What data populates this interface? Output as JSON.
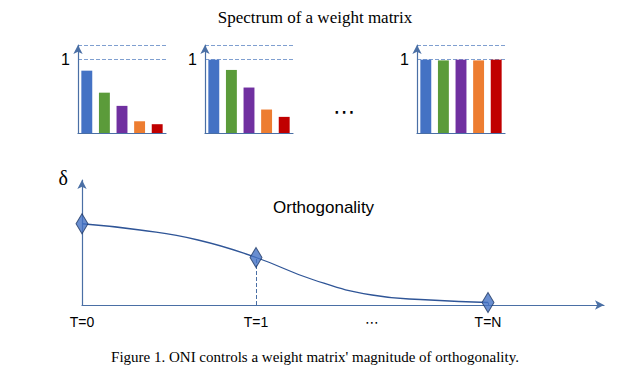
{
  "heading": "Spectrum of a weight matrix",
  "caption": "Figure 1. ONI controls a weight matrix' magnitude of orthogonality.",
  "chart_data": [
    {
      "type": "bar",
      "categories": [
        null,
        null,
        null,
        null,
        null
      ],
      "values": [
        0.85,
        0.55,
        0.37,
        0.16,
        0.12
      ],
      "colors": [
        "#4472c4",
        "#5b9b3a",
        "#7030a0",
        "#ed7d31",
        "#c00000"
      ],
      "ylim": [
        0,
        1.2
      ],
      "yticks": [
        1
      ],
      "grid": true,
      "tick_labels": "y"
    },
    {
      "type": "bar",
      "categories": [
        null,
        null,
        null,
        null,
        null
      ],
      "values": [
        1.0,
        0.86,
        0.62,
        0.32,
        0.22
      ],
      "colors": [
        "#4472c4",
        "#5b9b3a",
        "#7030a0",
        "#ed7d31",
        "#c00000"
      ],
      "ylim": [
        0,
        1.2
      ],
      "yticks": [
        1
      ],
      "grid": true,
      "tick_labels": "y",
      "annotation": "⋯"
    },
    {
      "type": "bar",
      "categories": [
        null,
        null,
        null,
        null,
        null
      ],
      "values": [
        1.0,
        0.99,
        1.0,
        0.99,
        1.0
      ],
      "colors": [
        "#4472c4",
        "#5b9b3a",
        "#7030a0",
        "#ed7d31",
        "#c00000"
      ],
      "ylim": [
        0,
        1.2
      ],
      "yticks": [
        1
      ],
      "grid": true,
      "tick_labels": "y"
    },
    {
      "type": "line",
      "title": "Orthogonality",
      "ylabel": "δ",
      "categories": [
        "T=0",
        null,
        null,
        "T=1",
        null,
        "⋯",
        null,
        "T=N",
        null,
        null
      ],
      "series": [
        {
          "type": "line",
          "color": "#2f5597",
          "values": [
            0.65,
            0.6,
            0.52,
            0.38,
            0.2,
            0.08,
            0.04,
            0.02,
            null,
            null
          ]
        },
        {
          "type": "scatter",
          "marker": "diamond",
          "color": "#4472c4",
          "values": [
            0.65,
            null,
            null,
            0.38,
            null,
            null,
            null,
            0.02,
            null,
            null
          ]
        }
      ],
      "ylim": [
        0,
        1
      ],
      "yticks": [],
      "grid": false,
      "tick_labels": "x"
    }
  ]
}
